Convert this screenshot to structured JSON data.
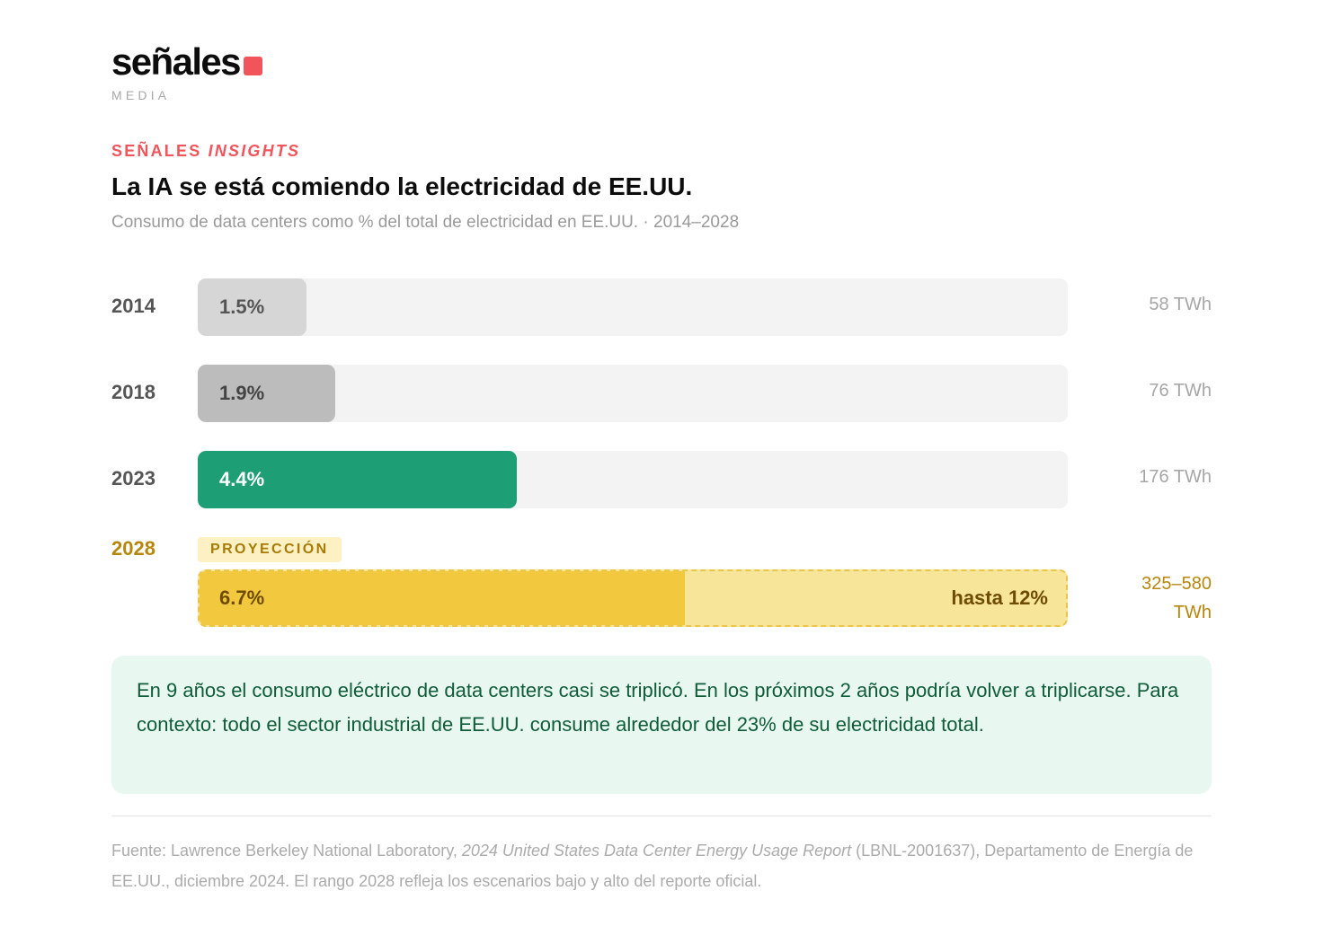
{
  "brand": {
    "name": "señales",
    "sub": "MEDIA"
  },
  "header": {
    "kicker_prefix": "SEÑALES",
    "kicker_emphasis": "INSIGHTS",
    "title": "La IA se está comiendo la electricidad de EE.UU.",
    "subtitle": "Consumo de data centers como % del total de electricidad en EE.UU. · 2014–2028"
  },
  "chart_data": {
    "type": "bar",
    "orientation": "horizontal",
    "title": "La IA se está comiendo la electricidad de EE.UU.",
    "subtitle": "Consumo de data centers como % del total de electricidad en EE.UU. · 2014–2028",
    "unit": "% del total de electricidad",
    "xlim": [
      0,
      12
    ],
    "bars": [
      {
        "year": "2014",
        "value": 1.5,
        "label": "1.5%",
        "energy": "58 TWh",
        "color": "#d6d6d6",
        "label_color": "#555555"
      },
      {
        "year": "2018",
        "value": 1.9,
        "label": "1.9%",
        "energy": "76 TWh",
        "color": "#bcbcbc",
        "label_color": "#444444"
      },
      {
        "year": "2023",
        "value": 4.4,
        "label": "4.4%",
        "energy": "176 TWh",
        "color": "#1e9e74",
        "label_color": "#ffffff"
      }
    ],
    "projection": {
      "year": "2028",
      "badge": "PROYECCIÓN",
      "low": 6.7,
      "high": 12,
      "low_label": "6.7%",
      "high_label": "hasta 12%",
      "energy_line1": "325–580",
      "energy_line2": "TWh",
      "low_color": "#f2c83f",
      "high_color": "#f7e69a",
      "year_color": "#b8860b"
    }
  },
  "note": {
    "text": "En 9 años el consumo eléctrico de data centers casi se triplicó. En los próximos 2 años podría volver a triplicarse. Para contexto: todo el sector industrial de EE.UU. consume alrededor del 23% de su electricidad total."
  },
  "source": {
    "prefix": "Fuente: Lawrence Berkeley National Laboratory, ",
    "report": "2024 United States Data Center Energy Usage Report",
    "suffix": " (LBNL-2001637), Departamento de Energía de EE.UU., diciembre 2024. El rango 2028 refleja los escenarios bajo y alto del reporte oficial."
  }
}
